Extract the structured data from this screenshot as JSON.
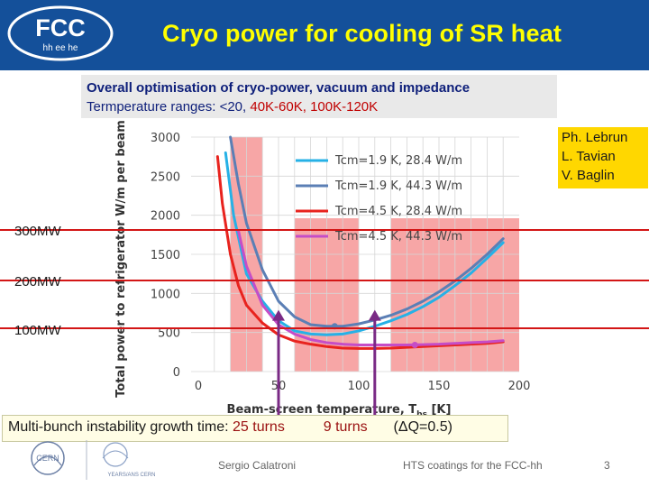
{
  "header": {
    "title": "Cryo power for cooling of SR heat",
    "logo_text_top": "FCC",
    "logo_text_bottom": "hh ee he"
  },
  "info": {
    "line1": "Overall optimisation of cryo-power, vacuum and impedance",
    "line2_prefix": "Termperature ranges: <20,",
    "range1": "40K-60K,",
    "range2": "100K-120K"
  },
  "credits": [
    "Ph. Lebrun",
    "L. Tavian",
    "V. Baglin"
  ],
  "mw_labels": [
    "300MW",
    "200MW",
    "100MW"
  ],
  "growth": {
    "label": "Multi-bunch instability growth time:",
    "turns1": "25 turns",
    "turns2": "9 turns",
    "dq": "(ΔQ=0.5)"
  },
  "footer": {
    "author": "Sergio Calatroni",
    "talk": "HTS coatings for the FCC-hh",
    "page": "3",
    "cern": "CERN",
    "years": "YEARS/ANS CERN"
  },
  "colors": {
    "header_bg": "#14509a",
    "title": "#ffff00",
    "band": "#f7a6a6",
    "mw_line": "#d31616"
  },
  "chart_data": {
    "type": "line",
    "xlabel": "Beam-screen temperature, T",
    "xlabel_sub": "bs",
    "xlabel_unit": " [K]",
    "ylabel": "Total power to refrigerator W/m per beam]",
    "xlim": [
      0,
      200
    ],
    "ylim": [
      0,
      3000
    ],
    "x_ticks": [
      0,
      50,
      100,
      150,
      200
    ],
    "y_ticks": [
      0,
      500,
      1000,
      1500,
      2000,
      2500,
      3000
    ],
    "temperature_bands": [
      [
        20,
        40
      ],
      [
        60,
        100
      ],
      [
        120,
        200
      ]
    ],
    "series": [
      {
        "name": "Tcm=1.9 K, 28.4 W/m",
        "color": "#26b1e6",
        "x": [
          17,
          22,
          30,
          40,
          50,
          60,
          70,
          80,
          90,
          100,
          110,
          120,
          130,
          140,
          150,
          160,
          170,
          180,
          190
        ],
        "y": [
          2800,
          2000,
          1250,
          900,
          650,
          520,
          480,
          470,
          480,
          520,
          580,
          650,
          730,
          830,
          950,
          1100,
          1260,
          1450,
          1650
        ]
      },
      {
        "name": "Tcm=1.9 K, 44.3 W/m",
        "color": "#5b7fb5",
        "x": [
          20,
          25,
          30,
          40,
          50,
          60,
          70,
          80,
          90,
          100,
          110,
          120,
          130,
          140,
          150,
          160,
          170,
          180,
          190
        ],
        "y": [
          3000,
          2400,
          1900,
          1300,
          900,
          700,
          600,
          580,
          580,
          610,
          660,
          720,
          800,
          900,
          1020,
          1160,
          1320,
          1500,
          1700
        ]
      },
      {
        "name": "Tcm=4.5 K, 28.4 W/m",
        "color": "#e8231e",
        "x": [
          12,
          15,
          20,
          25,
          30,
          40,
          50,
          60,
          70,
          80,
          90,
          100,
          110,
          120,
          130,
          140,
          150,
          160,
          170,
          180,
          190
        ],
        "y": [
          2750,
          2150,
          1500,
          1100,
          850,
          620,
          470,
          390,
          350,
          320,
          300,
          295,
          295,
          300,
          310,
          320,
          330,
          340,
          350,
          360,
          380
        ]
      },
      {
        "name": "Tcm=4.5 K, 44.3 W/m",
        "color": "#c54dc7",
        "x": [
          25,
          30,
          40,
          50,
          60,
          70,
          80,
          90,
          100,
          110,
          120,
          130,
          140,
          150,
          160,
          170,
          180,
          190
        ],
        "y": [
          1800,
          1350,
          850,
          600,
          480,
          410,
          370,
          350,
          340,
          340,
          340,
          340,
          345,
          350,
          360,
          370,
          380,
          395
        ]
      }
    ],
    "minima_markers": [
      {
        "series": 1,
        "x": 85,
        "y": 580
      },
      {
        "series": 3,
        "x": 135,
        "y": 340
      }
    ],
    "power_lines_MW": [
      300,
      200,
      100
    ],
    "arrows_at_x": [
      50,
      110
    ]
  }
}
